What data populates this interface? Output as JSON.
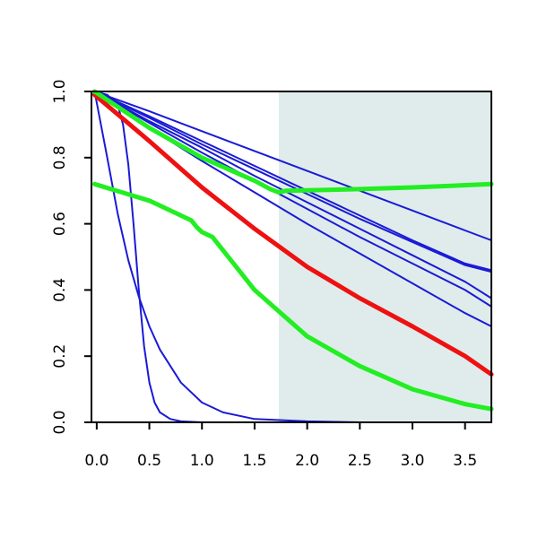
{
  "chart_data": {
    "type": "line",
    "title": "",
    "xlabel": "",
    "ylabel": "",
    "xlim": [
      -0.05,
      3.75
    ],
    "ylim": [
      0,
      1.0
    ],
    "grid": false,
    "legend": "none",
    "shaded_region": {
      "x_from": 1.73,
      "x_to": 3.75,
      "color": "#dfeceb"
    },
    "x_ticks": [
      "0.0",
      "0.5",
      "1.0",
      "1.5",
      "2.0",
      "2.5",
      "3.0",
      "3.5"
    ],
    "y_ticks": [
      "0.0",
      "0.2",
      "0.4",
      "0.6",
      "0.8",
      "1.0"
    ],
    "colors": {
      "blue": "#1a1ad6",
      "red": "#ee1111",
      "green": "#22ee22"
    },
    "series": [
      {
        "color": "blue",
        "width": "thin",
        "x": [
          -0.02,
          0.5,
          1.0,
          1.5,
          2.0,
          2.5,
          3.0,
          3.5,
          3.75
        ],
        "y": [
          1.0,
          0.94,
          0.88,
          0.82,
          0.76,
          0.7,
          0.64,
          0.58,
          0.55
        ]
      },
      {
        "color": "blue",
        "width": "thin",
        "x": [
          -0.02,
          0.5,
          1.0,
          1.5,
          2.0,
          2.5,
          3.0,
          3.5,
          3.75
        ],
        "y": [
          1.0,
          0.925,
          0.85,
          0.775,
          0.7,
          0.625,
          0.55,
          0.48,
          0.46
        ]
      },
      {
        "color": "blue",
        "width": "thin",
        "x": [
          -0.02,
          0.5,
          1.0,
          1.5,
          2.0,
          2.5,
          3.0,
          3.5,
          3.75
        ],
        "y": [
          1.0,
          0.92,
          0.84,
          0.765,
          0.69,
          0.615,
          0.545,
          0.475,
          0.455
        ]
      },
      {
        "color": "blue",
        "width": "thin",
        "x": [
          -0.02,
          0.5,
          1.0,
          1.5,
          2.0,
          2.5,
          3.0,
          3.5,
          3.75
        ],
        "y": [
          1.0,
          0.91,
          0.83,
          0.745,
          0.665,
          0.585,
          0.505,
          0.425,
          0.375
        ]
      },
      {
        "color": "blue",
        "width": "thin",
        "x": [
          -0.02,
          0.5,
          1.0,
          1.5,
          2.0,
          2.5,
          3.0,
          3.5,
          3.75
        ],
        "y": [
          1.0,
          0.905,
          0.815,
          0.73,
          0.645,
          0.56,
          0.48,
          0.4,
          0.35
        ]
      },
      {
        "color": "blue",
        "width": "thin",
        "x": [
          -0.02,
          0.5,
          1.0,
          1.5,
          2.0,
          2.5,
          3.0,
          3.5,
          3.75
        ],
        "y": [
          1.0,
          0.89,
          0.79,
          0.695,
          0.6,
          0.51,
          0.42,
          0.33,
          0.29
        ]
      },
      {
        "color": "blue",
        "width": "thin",
        "x": [
          -0.02,
          0.1,
          0.2,
          0.3,
          0.4,
          0.5,
          0.6,
          0.8,
          1.0,
          1.2,
          1.5,
          2.0,
          2.5,
          3.75
        ],
        "y": [
          1.0,
          0.8,
          0.63,
          0.49,
          0.38,
          0.29,
          0.22,
          0.12,
          0.06,
          0.03,
          0.01,
          0.003,
          0.0,
          0.0
        ]
      },
      {
        "color": "blue",
        "width": "thin",
        "x": [
          -0.02,
          0.1,
          0.2,
          0.25,
          0.3,
          0.35,
          0.4,
          0.45,
          0.5,
          0.55,
          0.6,
          0.7,
          0.8,
          1.0,
          3.75
        ],
        "y": [
          1.0,
          0.99,
          0.96,
          0.9,
          0.78,
          0.6,
          0.4,
          0.23,
          0.12,
          0.06,
          0.03,
          0.01,
          0.003,
          0.0,
          0.0
        ]
      },
      {
        "color": "green",
        "width": "thick",
        "x": [
          -0.02,
          0.5,
          0.9,
          0.95,
          1.0,
          1.1,
          1.5,
          2.0,
          2.5,
          3.0,
          3.5,
          3.75
        ],
        "y": [
          0.72,
          0.67,
          0.61,
          0.59,
          0.575,
          0.56,
          0.4,
          0.26,
          0.17,
          0.1,
          0.055,
          0.04
        ]
      },
      {
        "color": "red",
        "width": "thick",
        "x": [
          -0.02,
          0.5,
          1.0,
          1.5,
          2.0,
          2.5,
          3.0,
          3.5,
          3.75
        ],
        "y": [
          0.99,
          0.85,
          0.71,
          0.585,
          0.47,
          0.375,
          0.29,
          0.2,
          0.145
        ]
      },
      {
        "color": "green",
        "width": "thick",
        "x": [
          -0.02,
          0.5,
          1.0,
          1.5,
          1.65,
          1.73,
          1.8,
          2.5,
          3.0,
          3.75
        ],
        "y": [
          1.0,
          0.89,
          0.8,
          0.73,
          0.705,
          0.695,
          0.7,
          0.705,
          0.71,
          0.72
        ]
      }
    ]
  }
}
